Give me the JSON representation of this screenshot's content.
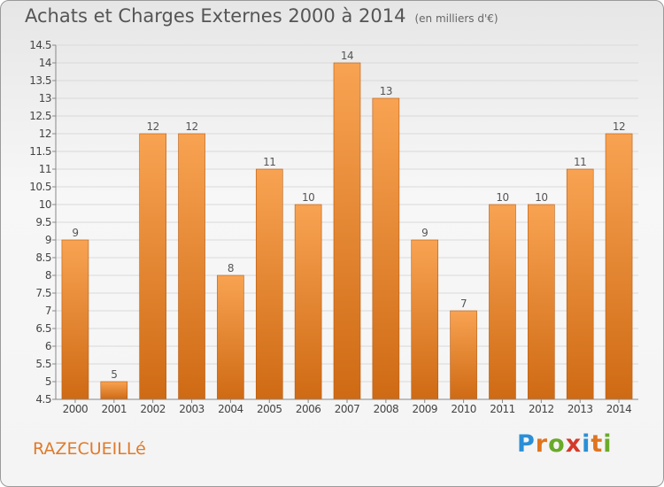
{
  "header": {
    "title": "Achats et Charges Externes 2000 à 2014",
    "unit": "(en milliers d'€)"
  },
  "footer": {
    "town": "RAZECUEILLé",
    "brand": "Proxiti"
  },
  "colors": {
    "bar_light": "#f8a352",
    "bar_dark": "#cf6a14",
    "town_text": "#e07a2a"
  },
  "chart_data": {
    "type": "bar",
    "title": "Achats et Charges Externes 2000 à 2014",
    "subtitle": "(en milliers d'€)",
    "categories": [
      "2000",
      "2001",
      "2002",
      "2003",
      "2004",
      "2005",
      "2006",
      "2007",
      "2008",
      "2009",
      "2010",
      "2011",
      "2012",
      "2013",
      "2014"
    ],
    "values": [
      9,
      5,
      12,
      12,
      8,
      11,
      10,
      14,
      13,
      9,
      7,
      10,
      10,
      11,
      12
    ],
    "ylim": [
      4.5,
      14.5
    ],
    "yticks": [
      "4.5",
      "5",
      "5.5",
      "6",
      "6.5",
      "7",
      "7.5",
      "8",
      "8.5",
      "9",
      "9.5",
      "10",
      "10.5",
      "11",
      "11.5",
      "12",
      "12.5",
      "13",
      "13.5",
      "14",
      "14.5"
    ],
    "grid": true,
    "legend": "none"
  }
}
